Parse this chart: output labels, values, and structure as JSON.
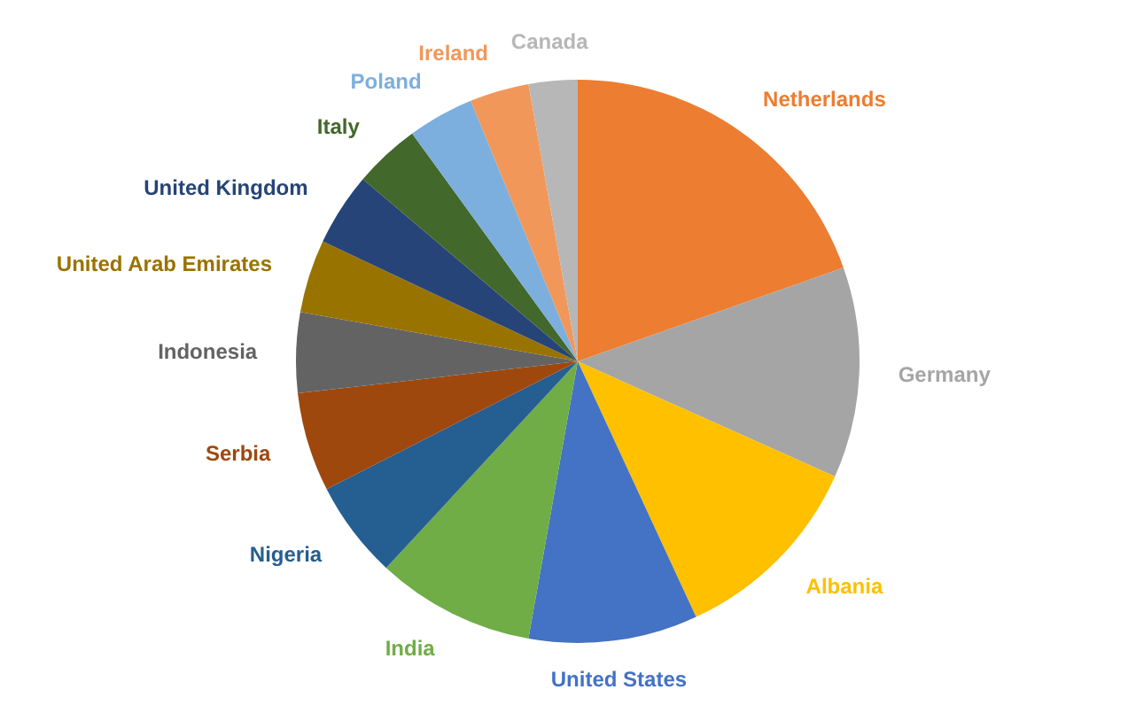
{
  "chart_data": {
    "type": "pie",
    "categories": [
      "Netherlands",
      "Germany",
      "Albania",
      "United States",
      "India",
      "Nigeria",
      "Serbia",
      "Indonesia",
      "United Arab Emirates",
      "United Kingdom",
      "Italy",
      "Poland",
      "Ireland",
      "Canada"
    ],
    "values": [
      19.6,
      12.1,
      11.4,
      9.7,
      9.1,
      5.6,
      5.7,
      4.6,
      4.2,
      4.2,
      3.8,
      3.8,
      3.4,
      2.8
    ],
    "colors": [
      "#ed7d31",
      "#a5a5a5",
      "#ffc000",
      "#4472c4",
      "#70ad47",
      "#255e91",
      "#9e480e",
      "#636363",
      "#997300",
      "#264478",
      "#43682b",
      "#7cafdd",
      "#f1975a",
      "#b7b7b7"
    ]
  }
}
